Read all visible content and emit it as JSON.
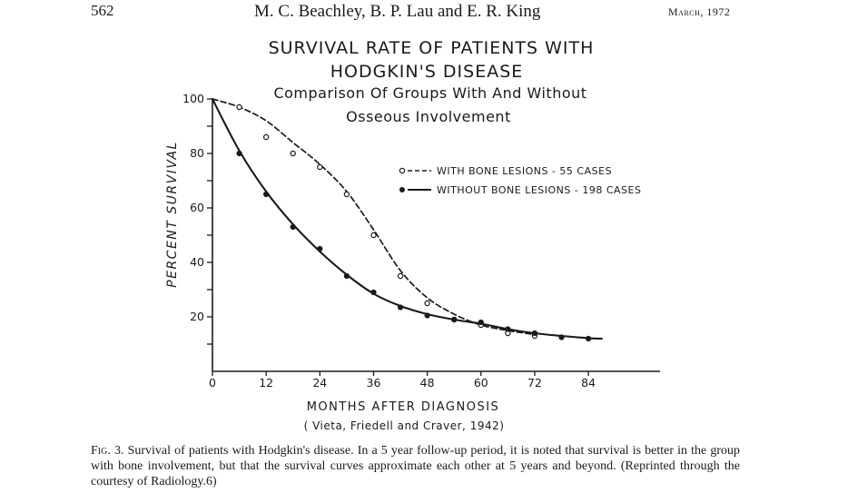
{
  "header": {
    "page_number": "562",
    "authors": "M. C. Beachley, B. P. Lau and E. R. King",
    "date": "March, 1972"
  },
  "chart_data": {
    "type": "line",
    "title": [
      "SURVIVAL RATE OF PATIENTS WITH",
      "HODGKIN'S DISEASE"
    ],
    "subtitle": [
      "Comparison Of Groups With And Without",
      "Osseous Involvement"
    ],
    "xlabel": "MONTHS AFTER DIAGNOSIS",
    "ylabel": "PERCENT SURVIVAL",
    "source": "( Vieta, Friedell and Craver, 1942)",
    "x_ticks": [
      0,
      12,
      24,
      36,
      48,
      60,
      72,
      84
    ],
    "y_ticks": [
      20,
      40,
      60,
      80,
      100
    ],
    "xlim": [
      0,
      98
    ],
    "ylim": [
      0,
      100
    ],
    "grid": false,
    "legend_position": "top-right",
    "series": [
      {
        "name": "WITH BONE LESIONS - 55 CASES",
        "line_style": "dashed",
        "marker": "open-circle",
        "points": [
          [
            0,
            100
          ],
          [
            6,
            97
          ],
          [
            12,
            86
          ],
          [
            18,
            80
          ],
          [
            24,
            75
          ],
          [
            30,
            65
          ],
          [
            36,
            50
          ],
          [
            42,
            35
          ],
          [
            48,
            25
          ],
          [
            54,
            19
          ],
          [
            60,
            17
          ],
          [
            66,
            14
          ],
          [
            72,
            13
          ]
        ],
        "curve": [
          [
            0,
            100
          ],
          [
            6,
            97
          ],
          [
            12,
            92
          ],
          [
            18,
            84
          ],
          [
            24,
            76
          ],
          [
            30,
            66
          ],
          [
            36,
            52
          ],
          [
            42,
            37
          ],
          [
            48,
            27
          ],
          [
            54,
            21
          ],
          [
            60,
            17
          ],
          [
            66,
            15
          ],
          [
            72,
            13.5
          ]
        ]
      },
      {
        "name": "WITHOUT BONE LESIONS - 198 CASES",
        "line_style": "solid",
        "marker": "filled-circle",
        "points": [
          [
            0,
            100
          ],
          [
            6,
            80
          ],
          [
            12,
            65
          ],
          [
            18,
            53
          ],
          [
            24,
            45
          ],
          [
            30,
            35
          ],
          [
            36,
            29
          ],
          [
            42,
            23.5
          ],
          [
            48,
            20.5
          ],
          [
            54,
            19
          ],
          [
            60,
            18
          ],
          [
            66,
            15.5
          ],
          [
            72,
            14
          ],
          [
            78,
            12.5
          ],
          [
            84,
            12
          ]
        ],
        "curve": [
          [
            0,
            100
          ],
          [
            6,
            81
          ],
          [
            12,
            66
          ],
          [
            18,
            54
          ],
          [
            24,
            44
          ],
          [
            30,
            35.5
          ],
          [
            36,
            28.5
          ],
          [
            42,
            24
          ],
          [
            48,
            21
          ],
          [
            54,
            19
          ],
          [
            60,
            17.5
          ],
          [
            66,
            15.5
          ],
          [
            72,
            14
          ],
          [
            78,
            13
          ],
          [
            84,
            12.2
          ],
          [
            87,
            12
          ]
        ]
      }
    ]
  },
  "caption": {
    "label": "Fig. 3.",
    "text": "Survival of patients with Hodgkin's disease. In a 5 year follow-up period, it is noted that survival is better in the group with bone involvement, but that the survival curves approximate each other at 5 years and beyond. (Reprinted through the courtesy of Radiology.6)"
  }
}
